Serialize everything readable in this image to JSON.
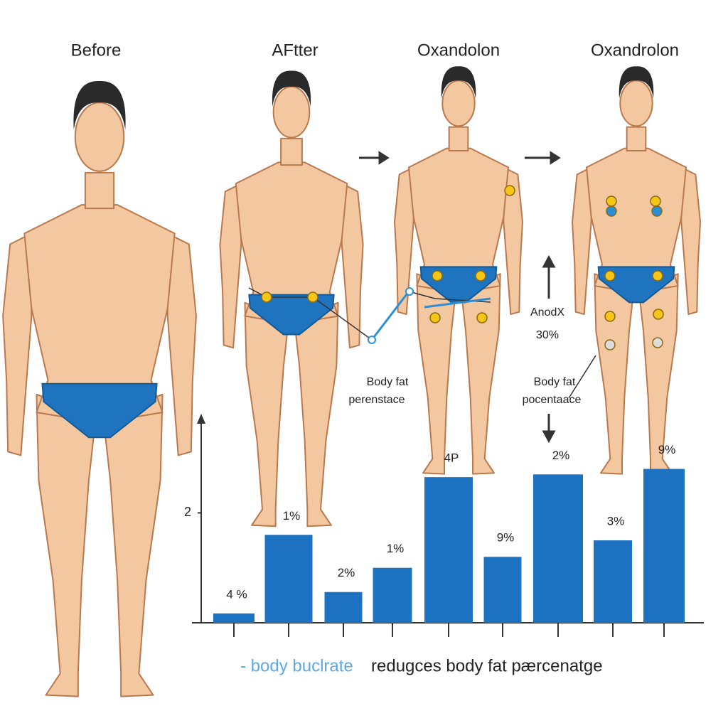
{
  "titles": [
    "Before",
    "AFtter",
    "Oxandolon",
    "Oxandrolon"
  ],
  "annotations": {
    "left": [
      "Body fat",
      "perenstace"
    ],
    "middle": [
      "AnodX",
      "30%"
    ],
    "right": [
      "Body fat",
      "pocentaace"
    ]
  },
  "chart_data": {
    "type": "bar",
    "categories": [
      null,
      null,
      null,
      null,
      null,
      null,
      null,
      null,
      null
    ],
    "values": [
      0.17,
      1.6,
      0.56,
      1.0,
      2.65,
      1.2,
      2.7,
      1.5,
      2.8
    ],
    "bar_labels": [
      "4 %",
      "1%",
      "2%",
      "1%",
      "4P",
      "9%",
      "2%",
      "3%",
      "9%"
    ],
    "color": "#1d72c2",
    "ylim": [
      0,
      3.7
    ],
    "yticks": [
      2
    ],
    "caption": [
      "- body buclrate",
      "redugces body fat pærcenatge"
    ]
  }
}
